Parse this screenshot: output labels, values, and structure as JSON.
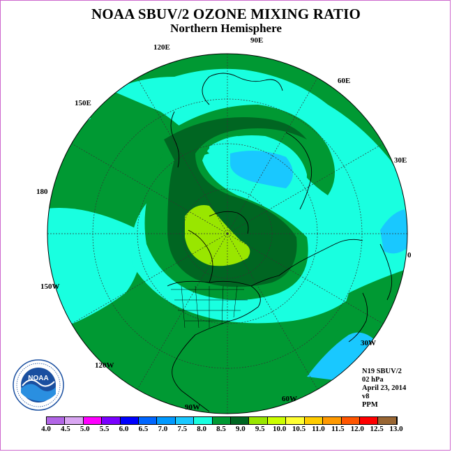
{
  "title": "NOAA SBUV/2 OZONE MIXING RATIO",
  "subtitle": "Northern Hemisphere",
  "longitude_labels": {
    "lon_90e": "90E",
    "lon_60e": "60E",
    "lon_30e": "30E",
    "lon_0": "0",
    "lon_30w": "30W",
    "lon_60w": "60W",
    "lon_90w": "90W",
    "lon_120w": "120W",
    "lon_150w": "150W",
    "lon_180": "180",
    "lon_150e": "150E",
    "lon_120e": "120E"
  },
  "info": {
    "instrument": "N19 SBUV/2",
    "pressure": "02 hPa",
    "date": "April 23, 2014",
    "version": "v8",
    "units": "PPM"
  },
  "colorbar": {
    "labels": [
      "4.0",
      "4.5",
      "5.0",
      "5.5",
      "6.0",
      "6.5",
      "7.0",
      "7.5",
      "8.0",
      "8.5",
      "9.0",
      "9.5",
      "10.0",
      "10.5",
      "11.0",
      "11.5",
      "12.0",
      "12.5",
      "13.0"
    ],
    "colors": [
      "#b266e6",
      "#d9a6f2",
      "#ff00ff",
      "#7a00ff",
      "#0000ff",
      "#0066ff",
      "#0099ff",
      "#19c8ff",
      "#19ffe0",
      "#009933",
      "#006622",
      "#99e600",
      "#ccff00",
      "#ffff33",
      "#ffcc00",
      "#ff9900",
      "#ff5500",
      "#ff0000",
      "#996633"
    ]
  },
  "logo": {
    "text": "NOAA",
    "ring_text": "NATIONAL OCEANIC AND ATMOSPHERIC ADMINISTRATION · U.S. DEPARTMENT OF COMMERCE"
  }
}
